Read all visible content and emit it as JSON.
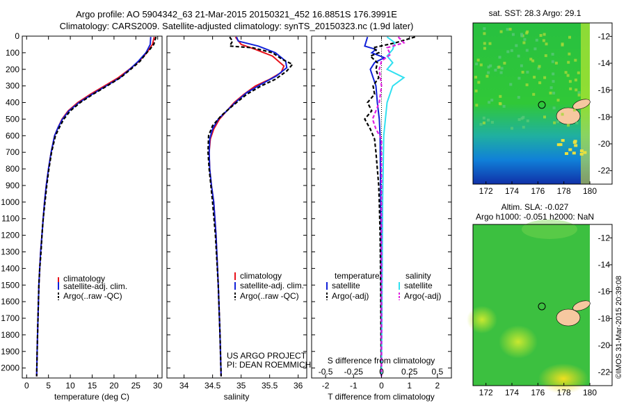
{
  "header": {
    "line1": "Argo profile: AO 5904342_63 21-Mar-2015 20150321_452 16.8851S 176.3991E",
    "line2": "Climatology: CARS2009. Satellite-adjusted climatology: synTS_20150323.nc (1.9d later)"
  },
  "colors": {
    "climatology": "#e8101a",
    "satellite": "#1020d8",
    "argo": "#000000",
    "salinity_satellite": "#30e0f0",
    "salinity_argo": "#e020e0",
    "land": "#f6c8a0"
  },
  "chart_data": [
    {
      "type": "line",
      "xlabel": "temperature (deg C)",
      "ylabel": "",
      "xlim": [
        -1,
        31
      ],
      "ylim": [
        2060,
        0
      ],
      "xticks": [
        "0",
        "5",
        "10",
        "15",
        "20",
        "25",
        "30"
      ],
      "yticks": [
        "0",
        "100",
        "200",
        "300",
        "400",
        "500",
        "600",
        "700",
        "800",
        "900",
        "1000",
        "1100",
        "1200",
        "1300",
        "1400",
        "1500",
        "1600",
        "1700",
        "1800",
        "1900",
        "2000"
      ],
      "legend": [
        "climatology",
        "satellite-adj. clim.",
        "Argo(..raw -QC)"
      ],
      "legend_position": "lower-left",
      "series": [
        {
          "name": "climatology",
          "style": "solid",
          "color": "#e8101a",
          "points": [
            [
              29.2,
              5
            ],
            [
              28.8,
              50
            ],
            [
              27.5,
              100
            ],
            [
              25.8,
              150
            ],
            [
              23.5,
              200
            ],
            [
              21,
              250
            ],
            [
              17.8,
              300
            ],
            [
              14.6,
              350
            ],
            [
              11.7,
              400
            ],
            [
              9.5,
              450
            ],
            [
              8.1,
              500
            ],
            [
              7.2,
              550
            ],
            [
              6.4,
              600
            ],
            [
              5.6,
              700
            ],
            [
              5,
              800
            ],
            [
              4.5,
              900
            ],
            [
              4.1,
              1000
            ],
            [
              3.8,
              1100
            ],
            [
              3.5,
              1200
            ],
            [
              3.2,
              1300
            ],
            [
              3,
              1400
            ],
            [
              2.8,
              1500
            ],
            [
              2.6,
              1700
            ],
            [
              2.4,
              1900
            ],
            [
              2.3,
              2050
            ]
          ]
        },
        {
          "name": "satellite-adj. clim.",
          "style": "solid",
          "color": "#1020d8",
          "points": [
            [
              28.4,
              5
            ],
            [
              28.3,
              50
            ],
            [
              27.3,
              100
            ],
            [
              25.6,
              150
            ],
            [
              23.6,
              200
            ],
            [
              21.4,
              250
            ],
            [
              18.2,
              300
            ],
            [
              15,
              350
            ],
            [
              12,
              400
            ],
            [
              9.7,
              450
            ],
            [
              8.2,
              500
            ],
            [
              7.2,
              550
            ],
            [
              6.4,
              600
            ],
            [
              5.6,
              700
            ],
            [
              5,
              800
            ],
            [
              4.5,
              900
            ],
            [
              4.1,
              1000
            ],
            [
              3.8,
              1100
            ],
            [
              3.5,
              1200
            ],
            [
              3.2,
              1300
            ],
            [
              3,
              1400
            ],
            [
              2.8,
              1500
            ],
            [
              2.6,
              1700
            ],
            [
              2.4,
              1900
            ],
            [
              2.3,
              2050
            ]
          ]
        },
        {
          "name": "Argo(..raw -QC)",
          "style": "dashed",
          "color": "#000000",
          "points": [
            [
              29.6,
              5
            ],
            [
              29.1,
              50
            ],
            [
              28.2,
              80
            ],
            [
              27.5,
              100
            ],
            [
              26,
              150
            ],
            [
              23.8,
              200
            ],
            [
              21.5,
              250
            ],
            [
              18.4,
              300
            ],
            [
              15.2,
              350
            ],
            [
              12.3,
              400
            ],
            [
              10,
              450
            ],
            [
              8.5,
              500
            ],
            [
              7.5,
              550
            ],
            [
              6.6,
              600
            ],
            [
              5.7,
              700
            ],
            [
              5.1,
              800
            ],
            [
              4.6,
              900
            ],
            [
              4.2,
              1000
            ],
            [
              3.8,
              1100
            ],
            [
              3.5,
              1200
            ],
            [
              3.3,
              1300
            ],
            [
              3,
              1400
            ],
            [
              2.8,
              1500
            ],
            [
              2.6,
              1700
            ],
            [
              2.4,
              1900
            ],
            [
              2.3,
              2050
            ]
          ]
        }
      ]
    },
    {
      "type": "line",
      "xlabel": "salinity",
      "ylabel": "",
      "xlim": [
        33.7,
        36.15
      ],
      "ylim": [
        2060,
        0
      ],
      "xticks": [
        "34",
        "34.5",
        "35",
        "35.5",
        "36"
      ],
      "legend": [
        "climatology",
        "satellite-adj. clim.",
        "Argo(..raw -QC)"
      ],
      "legend_position": "lower-right",
      "annotation": [
        "US ARGO PROJECT",
        "PI: DEAN ROEMMICH"
      ],
      "series": [
        {
          "name": "climatology",
          "style": "solid",
          "color": "#e8101a",
          "points": [
            [
              34.9,
              5
            ],
            [
              35.0,
              50
            ],
            [
              35.25,
              80
            ],
            [
              35.55,
              120
            ],
            [
              35.75,
              180
            ],
            [
              35.7,
              220
            ],
            [
              35.5,
              260
            ],
            [
              35.25,
              300
            ],
            [
              35.05,
              350
            ],
            [
              34.88,
              400
            ],
            [
              34.75,
              450
            ],
            [
              34.62,
              500
            ],
            [
              34.52,
              560
            ],
            [
              34.46,
              620
            ],
            [
              34.44,
              700
            ],
            [
              34.45,
              800
            ],
            [
              34.48,
              900
            ],
            [
              34.52,
              1000
            ],
            [
              34.56,
              1200
            ],
            [
              34.6,
              1500
            ],
            [
              34.63,
              1800
            ],
            [
              34.65,
              2050
            ]
          ]
        },
        {
          "name": "satellite-adj. clim.",
          "style": "solid",
          "color": "#1020d8",
          "points": [
            [
              34.92,
              5
            ],
            [
              34.95,
              30
            ],
            [
              35.3,
              60
            ],
            [
              35.6,
              100
            ],
            [
              35.78,
              150
            ],
            [
              35.8,
              190
            ],
            [
              35.62,
              240
            ],
            [
              35.35,
              290
            ],
            [
              35.1,
              340
            ],
            [
              34.9,
              400
            ],
            [
              34.75,
              450
            ],
            [
              34.6,
              500
            ],
            [
              34.5,
              560
            ],
            [
              34.45,
              620
            ],
            [
              34.44,
              700
            ],
            [
              34.45,
              800
            ],
            [
              34.48,
              900
            ],
            [
              34.52,
              1000
            ],
            [
              34.56,
              1200
            ],
            [
              34.6,
              1500
            ],
            [
              34.63,
              1800
            ],
            [
              34.65,
              2050
            ]
          ]
        },
        {
          "name": "Argo(..raw -QC)",
          "style": "dashed",
          "color": "#000000",
          "points": [
            [
              34.8,
              5
            ],
            [
              34.85,
              30
            ],
            [
              34.8,
              60
            ],
            [
              35.2,
              70
            ],
            [
              35.55,
              100
            ],
            [
              35.72,
              140
            ],
            [
              35.9,
              170
            ],
            [
              35.8,
              210
            ],
            [
              35.6,
              260
            ],
            [
              35.35,
              300
            ],
            [
              35.1,
              350
            ],
            [
              34.85,
              420
            ],
            [
              34.65,
              480
            ],
            [
              34.5,
              540
            ],
            [
              34.43,
              600
            ],
            [
              34.42,
              700
            ],
            [
              34.44,
              800
            ],
            [
              34.47,
              900
            ],
            [
              34.5,
              1000
            ],
            [
              34.55,
              1200
            ],
            [
              34.6,
              1500
            ],
            [
              34.63,
              1800
            ],
            [
              34.65,
              2050
            ]
          ]
        }
      ]
    },
    {
      "type": "line",
      "xlabel": "T difference from climatology",
      "top_label": "S difference from climatology",
      "xlim": [
        -2.5,
        2.5
      ],
      "ylim": [
        2060,
        0
      ],
      "xticks": [
        "-2",
        "-1",
        "0",
        "1",
        "2"
      ],
      "top_ticks": [
        "-0.5",
        "-0.25",
        "0",
        "0.25",
        "0.5"
      ],
      "legend": [
        "temperature",
        "satellite",
        "Argo(-adj)",
        "salinity",
        "satellite",
        "Argo(-adj)"
      ],
      "legend_position": "lower-center",
      "series": [
        {
          "name": "satellite",
          "group": "temperature",
          "style": "solid",
          "color": "#1020d8",
          "points": [
            [
              -0.5,
              5
            ],
            [
              -0.6,
              60
            ],
            [
              -0.2,
              80
            ],
            [
              -0.35,
              100
            ],
            [
              0.1,
              130
            ],
            [
              -0.25,
              160
            ],
            [
              -0.4,
              200
            ],
            [
              -0.3,
              250
            ],
            [
              -0.2,
              300
            ],
            [
              -0.15,
              400
            ],
            [
              -0.08,
              500
            ],
            [
              -0.05,
              600
            ],
            [
              -0.04,
              800
            ],
            [
              -0.02,
              1200
            ],
            [
              -0.01,
              2050
            ]
          ]
        },
        {
          "name": "Argo(-adj)",
          "group": "temperature",
          "style": "dashed",
          "color": "#000000",
          "points": [
            [
              1.2,
              5
            ],
            [
              0.5,
              40
            ],
            [
              -0.3,
              70
            ],
            [
              -0.1,
              100
            ],
            [
              -0.4,
              120
            ],
            [
              -0.15,
              160
            ],
            [
              -0.2,
              200
            ],
            [
              -0.1,
              250
            ],
            [
              -0.3,
              300
            ],
            [
              -0.25,
              350
            ],
            [
              -0.5,
              400
            ],
            [
              -0.35,
              450
            ],
            [
              -0.6,
              500
            ],
            [
              -0.4,
              560
            ],
            [
              -0.25,
              620
            ],
            [
              -0.2,
              700
            ],
            [
              -0.15,
              800
            ],
            [
              -0.1,
              900
            ],
            [
              -0.08,
              1000
            ],
            [
              -0.05,
              1200
            ],
            [
              -0.03,
              1500
            ],
            [
              -0.01,
              2050
            ]
          ]
        },
        {
          "name": "satellite",
          "group": "salinity",
          "style": "solid",
          "color": "#30e0f0",
          "points": [
            [
              0.05,
              5
            ],
            [
              0.12,
              40
            ],
            [
              0.1,
              80
            ],
            [
              0.05,
              120
            ],
            [
              0.1,
              160
            ],
            [
              0.05,
              200
            ],
            [
              0.2,
              250
            ],
            [
              0.1,
              300
            ],
            [
              0.05,
              400
            ],
            [
              0.02,
              600
            ],
            [
              0.01,
              1000
            ],
            [
              0.0,
              2050
            ]
          ]
        },
        {
          "name": "Argo(-adj)",
          "group": "salinity",
          "style": "dashed",
          "color": "#e020e0",
          "points": [
            [
              0.15,
              5
            ],
            [
              0.2,
              40
            ],
            [
              0.05,
              70
            ],
            [
              0.08,
              110
            ],
            [
              0.0,
              150
            ],
            [
              -0.02,
              200
            ],
            [
              0.0,
              300
            ],
            [
              -0.02,
              400
            ],
            [
              -0.08,
              500
            ],
            [
              -0.05,
              560
            ],
            [
              0.0,
              620
            ],
            [
              0.0,
              2050
            ]
          ]
        }
      ]
    },
    {
      "type": "heatmap",
      "title": "sat. SST: 28.3 Argo: 29.1",
      "xlim": [
        171,
        181
      ],
      "ylim": [
        -23,
        -11
      ],
      "xticks": [
        "172",
        "174",
        "176",
        "178",
        "180"
      ],
      "yticks": [
        "-12",
        "-14",
        "-16",
        "-18",
        "-20",
        "-22"
      ]
    },
    {
      "type": "heatmap",
      "title": "Altim. SLA: -0.027",
      "subtitle": "Argo h1000: -0.051 h2000: NaN",
      "xlim": [
        171,
        181
      ],
      "ylim": [
        -23,
        -11
      ],
      "xticks": [
        "172",
        "174",
        "176",
        "178",
        "180"
      ],
      "yticks": [
        "-12",
        "-14",
        "-16",
        "-18",
        "-20",
        "-22"
      ]
    }
  ],
  "footer": {
    "stamp": "©IMOS 31-Mar-2015 20:39:08"
  }
}
